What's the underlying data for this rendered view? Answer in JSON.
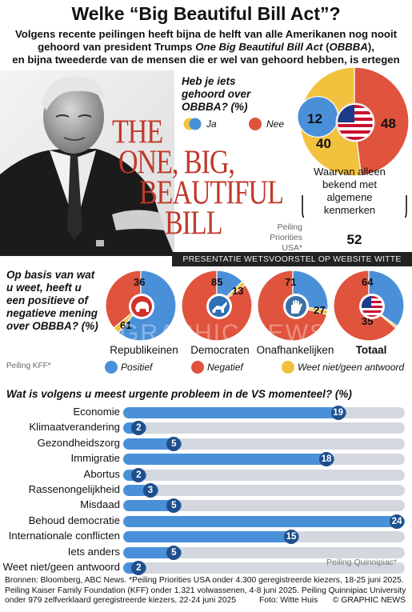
{
  "header": {
    "title": "Welke “Big Beautiful Bill Act”?",
    "subtitle_lines": [
      "Volgens recente peilingen heeft bijna de helft van alle Amerikanen nog nooit",
      "gehoord van president Trumps One Big Beautiful Bill Act (OBBBA),",
      "en bijna tweederde van de mensen die er wel van gehoord hebben, is ertegen"
    ]
  },
  "movie_title": [
    "THE",
    "ONE, BIG,",
    "BEAUTIFUL",
    "BILL"
  ],
  "photo_caption": "PRESENTATIE WETSVOORSTEL OP WEBSITE WITTE HUIS",
  "watermark": "GRAPHIC NEWS",
  "colors": {
    "positive": "#4a90d9",
    "negative": "#e0533d",
    "unknown": "#f2c23e",
    "dark": "#1e4f8c",
    "track": "#d4d8de"
  },
  "chart_data": [
    {
      "type": "pie",
      "title": "Heb je iets gehoord over OBBBA? (%)",
      "legend": {
        "yes": "Ja",
        "no": "Nee"
      },
      "values": {
        "ja_total": 52,
        "ja_alleen_algemeen": 40,
        "ja_detail": 12,
        "nee": 48
      },
      "bracket_note": "Waarvan alleen bekend met algemene kenmerken",
      "bracket_value": "52",
      "source": "Peiling Priorities USA*",
      "icon": "us-flag-icon"
    },
    {
      "type": "pie",
      "title": "Op basis van wat u weet, heeft u een positieve of negatieve mening over OBBBA? (%)",
      "source": "Peiling KFF*",
      "legend": {
        "positive": "Positief",
        "negative": "Negatief",
        "unknown": "Weet niet/geen antwoord"
      },
      "groups": [
        {
          "name": "Republikeinen",
          "negatief": 36,
          "positief": 61,
          "weet_niet": 3,
          "icon": "elephant-icon",
          "label_a": "36",
          "label_b": "61"
        },
        {
          "name": "Democraten",
          "negatief": 85,
          "positief": 13,
          "weet_niet": 2,
          "icon": "donkey-icon",
          "label_a": "85",
          "label_b": "13"
        },
        {
          "name": "Onafhankelijken",
          "negatief": 71,
          "positief": 27,
          "weet_niet": 2,
          "icon": "hand-icon",
          "label_a": "71",
          "label_b": "27"
        },
        {
          "name": "Totaal",
          "negatief": 64,
          "positief": 35,
          "weet_niet": 1,
          "icon": "us-flag-icon",
          "label_a": "64",
          "label_b": "35"
        }
      ]
    },
    {
      "type": "bar",
      "title": "Wat is volgens u meest urgente probleem in de VS momenteel? (%)",
      "categories": [
        "Economie",
        "Klimaatverandering",
        "Gezondheidszorg",
        "Immigratie",
        "Abortus",
        "Rassenongelijkheid",
        "Misdaad",
        "Behoud democratie",
        "Internationale conflicten",
        "Iets anders",
        "Weet niet/geen antwoord"
      ],
      "values": [
        19,
        2,
        5,
        18,
        2,
        3,
        5,
        24,
        15,
        5,
        2
      ],
      "labels": [
        "19",
        "2",
        "5",
        "18",
        "2",
        "3",
        "5",
        "24",
        "15",
        "5",
        "2"
      ],
      "xlim": [
        0,
        24
      ],
      "source": "Peiling Quinnipiac*"
    }
  ],
  "footer": {
    "source_lines": [
      "Bronnen: Bloomberg, ABC News. *Peiling Priorities USA onder 4.300 geregistreerde kiezers, 18-25 juni 2025.",
      "Peiling Kaiser Family Foundation (KFF) onder 1.321 volwassenen, 4-8 juni 2025. Peiling Quinnipiac University",
      "onder 979 zelfverklaard geregistreerde kiezers, 22-24 juni 2025"
    ],
    "credit": "Foto: Witte Huis",
    "brand": "© GRAPHIC NEWS"
  }
}
